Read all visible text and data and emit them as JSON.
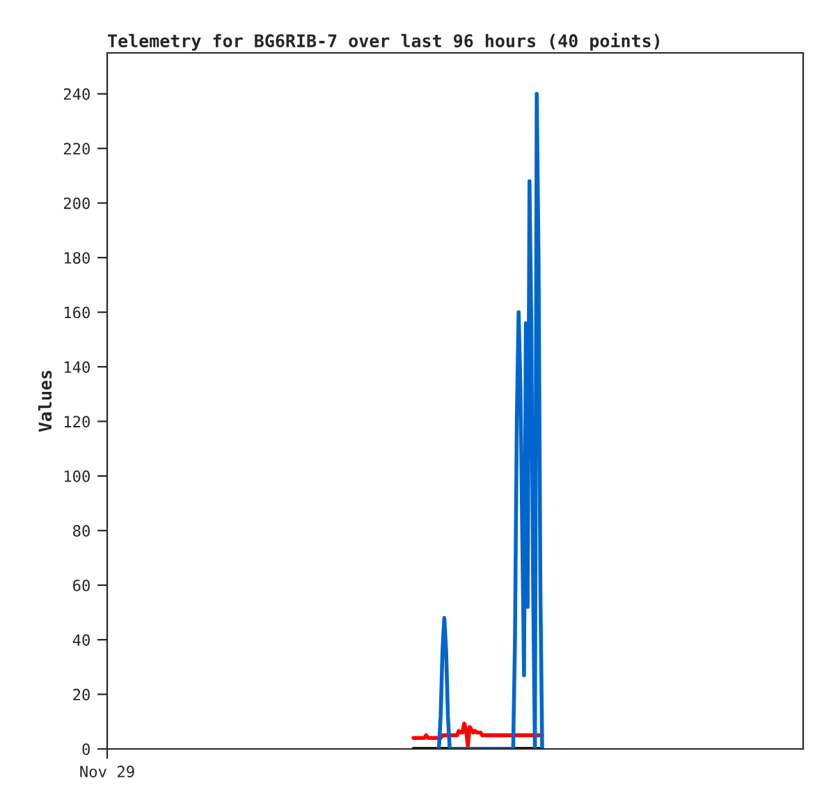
{
  "chart_data": {
    "type": "line",
    "title": "Telemetry for BG6RIB-7 over last 96 hours (40 points)",
    "ylabel": "Values",
    "categories": [
      "Nov 29",
      null,
      null,
      null,
      null,
      null,
      null,
      null,
      null,
      null,
      null,
      null,
      null,
      null,
      null,
      null,
      null,
      null,
      null,
      null,
      null,
      null,
      null,
      null,
      null,
      null,
      null,
      null,
      null,
      null,
      null,
      null,
      null,
      null,
      null,
      null,
      null,
      null,
      null,
      null,
      null,
      null,
      null,
      null,
      null,
      null,
      null,
      null,
      null,
      null,
      null,
      null,
      null,
      null,
      null,
      null,
      null,
      null,
      null,
      null,
      null,
      null,
      null,
      null,
      null,
      null,
      null,
      null,
      null,
      null,
      null,
      null,
      null,
      null,
      null,
      null,
      null,
      null,
      null,
      null,
      null,
      null,
      null,
      null,
      null,
      null,
      null,
      null,
      null,
      null,
      null,
      null,
      null,
      null,
      null,
      null,
      null,
      null,
      null,
      null,
      null,
      null,
      null,
      null,
      null,
      null,
      null,
      null,
      null,
      null,
      null,
      null,
      null,
      null,
      null,
      null,
      null,
      null,
      null,
      null,
      null,
      null,
      null,
      null,
      null,
      null,
      null,
      null,
      null,
      null,
      null,
      null,
      null,
      null,
      null,
      null,
      null,
      null,
      null,
      null,
      null,
      null,
      null,
      null,
      null,
      null,
      null,
      null,
      null,
      null,
      null,
      null,
      null,
      null,
      null,
      null,
      null,
      null,
      null,
      null,
      null,
      null,
      null,
      null,
      null,
      null,
      null,
      null,
      null,
      null,
      null,
      null,
      null,
      null,
      null,
      null,
      null,
      null,
      null,
      null,
      null,
      null,
      null,
      null,
      null,
      null,
      null,
      null,
      null,
      null,
      null,
      null,
      null,
      null,
      null,
      null,
      null,
      null,
      null,
      null,
      null,
      null,
      null,
      null,
      null,
      null,
      null,
      null,
      null,
      null,
      null,
      null,
      null,
      null,
      null,
      null,
      null,
      null,
      null,
      null,
      null,
      null,
      null,
      null,
      null,
      null,
      null,
      null,
      null,
      null,
      null,
      null,
      null,
      null,
      null,
      null,
      null,
      null,
      null,
      null,
      null,
      null,
      null,
      null,
      null,
      null,
      null,
      null,
      null,
      null,
      null,
      null,
      null,
      null,
      null,
      null,
      null,
      null,
      null,
      null,
      null,
      null,
      null,
      null,
      null,
      null,
      null,
      null,
      null,
      null,
      null,
      null,
      null,
      null,
      null,
      null,
      null,
      null,
      null,
      null,
      null,
      null,
      null,
      null,
      null,
      null,
      null,
      null,
      null,
      null,
      null,
      null,
      null,
      null,
      null,
      null,
      null,
      null,
      null,
      null,
      null,
      null,
      null,
      null,
      null,
      null,
      null,
      null,
      null,
      null,
      null,
      null,
      null,
      null,
      null,
      null,
      null,
      null,
      null,
      null,
      null,
      null,
      null,
      null,
      null,
      null,
      null,
      null,
      null,
      null,
      null,
      null,
      null,
      null,
      null,
      null,
      null,
      null,
      null,
      null,
      null,
      null,
      null,
      null,
      null,
      null,
      null,
      null,
      null,
      null,
      null,
      null,
      null,
      null,
      null,
      null,
      null,
      null,
      null,
      null,
      null,
      null,
      null,
      null,
      null,
      null,
      null,
      null,
      null,
      null,
      null,
      null,
      null,
      null,
      null,
      null,
      null,
      null,
      null,
      null,
      null,
      null,
      null,
      null,
      null
    ],
    "ylim": [
      0,
      255
    ],
    "yticks": [
      0,
      20,
      40,
      60,
      80,
      100,
      120,
      140,
      160,
      180,
      200,
      220,
      240
    ],
    "grid": false,
    "legend": false,
    "marker": "none",
    "line_style": "solid",
    "series": [
      {
        "color": "#000000",
        "values": [
          null,
          null,
          null,
          null,
          null,
          null,
          null,
          null,
          null,
          null,
          null,
          null,
          null,
          null,
          null,
          null,
          null,
          null,
          null,
          null,
          null,
          null,
          null,
          null,
          null,
          null,
          null,
          null,
          null,
          null,
          null,
          null,
          null,
          null,
          null,
          null,
          null,
          null,
          null,
          null,
          null,
          null,
          null,
          null,
          null,
          null,
          null,
          null,
          null,
          null,
          null,
          null,
          null,
          null,
          null,
          null,
          null,
          null,
          null,
          null,
          null,
          null,
          null,
          null,
          null,
          null,
          null,
          null,
          null,
          null,
          null,
          null,
          null,
          null,
          null,
          null,
          null,
          null,
          null,
          null,
          null,
          null,
          null,
          null,
          null,
          null,
          null,
          null,
          null,
          null,
          null,
          null,
          null,
          null,
          null,
          null,
          null,
          null,
          null,
          null,
          null,
          null,
          null,
          null,
          null,
          null,
          null,
          null,
          null,
          null,
          null,
          null,
          null,
          null,
          null,
          null,
          null,
          null,
          null,
          null,
          null,
          null,
          null,
          null,
          null,
          null,
          null,
          null,
          null,
          null,
          null,
          null,
          null,
          null,
          null,
          null,
          null,
          null,
          null,
          null,
          null,
          null,
          null,
          null,
          null,
          null,
          null,
          null,
          null,
          null,
          null,
          null,
          null,
          null,
          null,
          null,
          null,
          null,
          null,
          null,
          null,
          null,
          null,
          null,
          null,
          null,
          null,
          null,
          null,
          0,
          0,
          0,
          0,
          0,
          0,
          0,
          0,
          0,
          0,
          0,
          0,
          0,
          0,
          0,
          0,
          0,
          0,
          0,
          0,
          0,
          0,
          0,
          0,
          0,
          0,
          0,
          0,
          0,
          0,
          0,
          0,
          0,
          0,
          0,
          0,
          0,
          0,
          0,
          0,
          0,
          0,
          0,
          0,
          0,
          0,
          0,
          0,
          0,
          0,
          0,
          0,
          0,
          0,
          0,
          0,
          0,
          0,
          0,
          0,
          0,
          0,
          0,
          0,
          0,
          0,
          0,
          0,
          0,
          0,
          0,
          0,
          null,
          null,
          null,
          null,
          null,
          null,
          null,
          null,
          null,
          null,
          null,
          null,
          null,
          null,
          null,
          null,
          null,
          null,
          null,
          null,
          null,
          null,
          null,
          null,
          null,
          null,
          null,
          null,
          null,
          null,
          null,
          null,
          null,
          null,
          null,
          null,
          null,
          null,
          null,
          null,
          null,
          null,
          null,
          null,
          null,
          null,
          null,
          null,
          null,
          null,
          null,
          null,
          null,
          null,
          null,
          null,
          null,
          null,
          null,
          null,
          null,
          null,
          null,
          null,
          null,
          null,
          null,
          null,
          null,
          null,
          null,
          null,
          null,
          null,
          null,
          null,
          null,
          null,
          null,
          null,
          null,
          null,
          null,
          null,
          null,
          null,
          null,
          null,
          null,
          null,
          null,
          null,
          null,
          null,
          null,
          null,
          null,
          null,
          null,
          null,
          null,
          null,
          null,
          null,
          null,
          null,
          null,
          null,
          null,
          null,
          null,
          null,
          null,
          null,
          null,
          null,
          null,
          null,
          null,
          null,
          null,
          null,
          null,
          null,
          null,
          null,
          null,
          null,
          null,
          null,
          null,
          null,
          null,
          null,
          null,
          null,
          null,
          null,
          null,
          null,
          null,
          null,
          null,
          null
        ]
      },
      {
        "color": "#ff0000",
        "values": [
          null,
          null,
          null,
          null,
          null,
          null,
          null,
          null,
          null,
          null,
          null,
          null,
          null,
          null,
          null,
          null,
          null,
          null,
          null,
          null,
          null,
          null,
          null,
          null,
          null,
          null,
          null,
          null,
          null,
          null,
          null,
          null,
          null,
          null,
          null,
          null,
          null,
          null,
          null,
          null,
          null,
          null,
          null,
          null,
          null,
          null,
          null,
          null,
          null,
          null,
          null,
          null,
          null,
          null,
          null,
          null,
          null,
          null,
          null,
          null,
          null,
          null,
          null,
          null,
          null,
          null,
          null,
          null,
          null,
          null,
          null,
          null,
          null,
          null,
          null,
          null,
          null,
          null,
          null,
          null,
          null,
          null,
          null,
          null,
          null,
          null,
          null,
          null,
          null,
          null,
          null,
          null,
          null,
          null,
          null,
          null,
          null,
          null,
          null,
          null,
          null,
          null,
          null,
          null,
          null,
          null,
          null,
          null,
          null,
          null,
          null,
          null,
          null,
          null,
          null,
          null,
          null,
          null,
          null,
          null,
          null,
          null,
          null,
          null,
          null,
          null,
          null,
          null,
          null,
          null,
          null,
          null,
          null,
          null,
          null,
          null,
          null,
          null,
          null,
          null,
          null,
          null,
          null,
          null,
          null,
          null,
          null,
          null,
          null,
          null,
          null,
          null,
          null,
          null,
          null,
          null,
          null,
          null,
          null,
          null,
          null,
          null,
          null,
          null,
          null,
          null,
          null,
          null,
          null,
          4,
          4,
          4,
          4,
          4,
          4,
          4,
          5,
          4,
          4,
          4,
          4,
          4,
          4,
          4,
          4,
          5,
          5,
          5,
          5,
          5,
          5,
          5,
          5,
          5,
          6.6,
          6,
          6,
          9.3,
          7,
          1,
          8,
          7,
          6,
          6.6,
          6,
          6,
          6,
          5,
          5,
          5,
          5,
          5,
          5,
          5,
          5,
          5,
          5,
          5,
          5,
          5,
          5,
          5,
          5,
          5,
          5,
          5,
          5,
          5,
          5,
          5,
          5,
          5,
          5,
          5,
          5,
          5,
          5,
          5,
          5,
          5,
          5,
          null,
          null,
          null,
          null,
          null,
          null,
          null,
          null,
          null,
          null,
          null,
          null,
          null,
          null,
          null,
          null,
          null,
          null,
          null,
          null,
          null,
          null,
          null,
          null,
          null,
          null,
          null,
          null,
          null,
          null,
          null,
          null,
          null,
          null,
          null,
          null,
          null,
          null,
          null,
          null,
          null,
          null,
          null,
          null,
          null,
          null,
          null,
          null,
          null,
          null,
          null,
          null,
          null,
          null,
          null,
          null,
          null,
          null,
          null,
          null,
          null,
          null,
          null,
          null,
          null,
          null,
          null,
          null,
          null,
          null,
          null,
          null,
          null,
          null,
          null,
          null,
          null,
          null,
          null,
          null,
          null,
          null,
          null,
          null,
          null,
          null,
          null,
          null,
          null,
          null,
          null,
          null,
          null,
          null,
          null,
          null,
          null,
          null,
          null,
          null,
          null,
          null,
          null,
          null,
          null,
          null,
          null,
          null,
          null,
          null,
          null,
          null,
          null,
          null,
          null,
          null,
          null,
          null,
          null,
          null,
          null,
          null,
          null,
          null,
          null,
          null,
          null,
          null,
          null,
          null,
          null,
          null,
          null,
          null,
          null,
          null,
          null,
          null,
          null,
          null,
          null,
          null,
          null,
          null
        ]
      },
      {
        "color": "#0066cc",
        "values": [
          null,
          null,
          null,
          null,
          null,
          null,
          null,
          null,
          null,
          null,
          null,
          null,
          null,
          null,
          null,
          null,
          null,
          null,
          null,
          null,
          null,
          null,
          null,
          null,
          null,
          null,
          null,
          null,
          null,
          null,
          null,
          null,
          null,
          null,
          null,
          null,
          null,
          null,
          null,
          null,
          null,
          null,
          null,
          null,
          null,
          null,
          null,
          null,
          null,
          null,
          null,
          null,
          null,
          null,
          null,
          null,
          null,
          null,
          null,
          null,
          null,
          null,
          null,
          null,
          null,
          null,
          null,
          null,
          null,
          null,
          null,
          null,
          null,
          null,
          null,
          null,
          null,
          null,
          null,
          null,
          null,
          null,
          null,
          null,
          null,
          null,
          null,
          null,
          null,
          null,
          null,
          null,
          null,
          null,
          null,
          null,
          null,
          null,
          null,
          null,
          null,
          null,
          null,
          null,
          null,
          null,
          null,
          null,
          null,
          null,
          null,
          null,
          null,
          null,
          null,
          null,
          null,
          null,
          null,
          null,
          null,
          null,
          null,
          null,
          null,
          null,
          null,
          null,
          null,
          null,
          null,
          null,
          null,
          null,
          null,
          null,
          null,
          null,
          null,
          null,
          null,
          null,
          null,
          null,
          null,
          null,
          null,
          null,
          null,
          null,
          null,
          null,
          null,
          null,
          null,
          null,
          null,
          null,
          null,
          null,
          null,
          null,
          null,
          null,
          null,
          null,
          null,
          null,
          null,
          null,
          null,
          null,
          null,
          null,
          null,
          null,
          null,
          null,
          null,
          null,
          null,
          null,
          null,
          0,
          12,
          36,
          48,
          36,
          12,
          0,
          null,
          null,
          null,
          null,
          null,
          null,
          null,
          null,
          null,
          null,
          null,
          null,
          null,
          null,
          null,
          null,
          null,
          null,
          null,
          null,
          null,
          null,
          null,
          null,
          null,
          null,
          null,
          null,
          null,
          null,
          null,
          null,
          null,
          null,
          0,
          40,
          120,
          160,
          133,
          80,
          27,
          156,
          52,
          208,
          156,
          60,
          0,
          240,
          180,
          60,
          0,
          null,
          null,
          null,
          null,
          null,
          null,
          null,
          null,
          null,
          null,
          null,
          null,
          null,
          null,
          null,
          null,
          null,
          null,
          null,
          null,
          null,
          null,
          null,
          null,
          null,
          null,
          null,
          null,
          null,
          null,
          null,
          null,
          null,
          null,
          null,
          null,
          null,
          null,
          null,
          null,
          null,
          null,
          null,
          null,
          null,
          null,
          null,
          null,
          null,
          null,
          null,
          null,
          null,
          null,
          null,
          null,
          null,
          null,
          null,
          null,
          null,
          null,
          null,
          null,
          null,
          null,
          null,
          null,
          null,
          null,
          null,
          null,
          null,
          null,
          null,
          null,
          null,
          null,
          null,
          null,
          null,
          null,
          null,
          null,
          null,
          null,
          null,
          null,
          null,
          null,
          null,
          null,
          null,
          null,
          null,
          null,
          null,
          null,
          null,
          null,
          null,
          null,
          null,
          null,
          null,
          null,
          null,
          null,
          null,
          null,
          null,
          null,
          null,
          null,
          null,
          null,
          null,
          null,
          null,
          null,
          null,
          null,
          null,
          null,
          null,
          null,
          null,
          null,
          null,
          null,
          null,
          null,
          null,
          null,
          null,
          null,
          null,
          null,
          null,
          null,
          null,
          null,
          null,
          null
        ]
      }
    ]
  }
}
